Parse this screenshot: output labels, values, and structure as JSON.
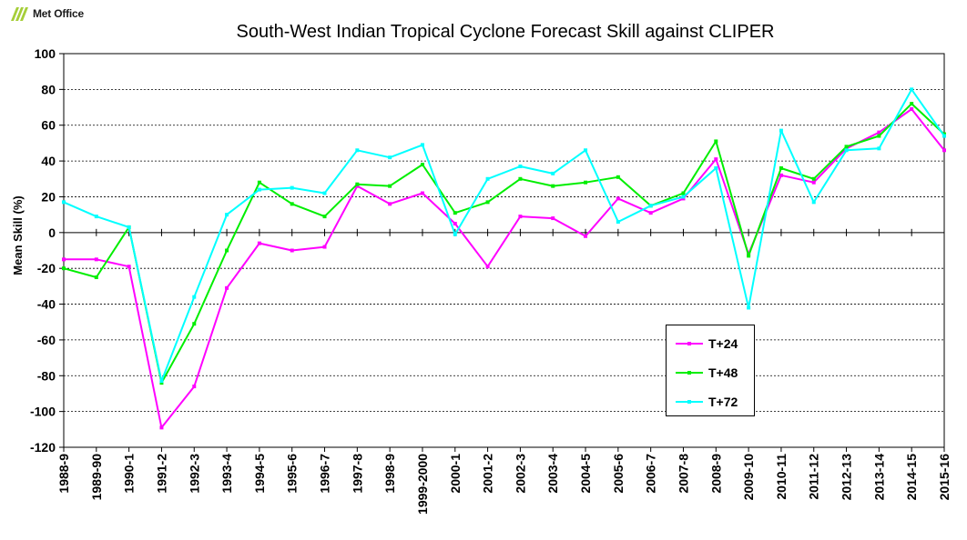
{
  "logo": {
    "text": "Met Office",
    "color": "#a6ce39"
  },
  "chart_data": {
    "type": "line",
    "title": "South-West Indian Tropical Cyclone Forecast Skill against CLIPER",
    "ylabel": "Mean Skill (%)",
    "xlabel": "",
    "ylim": [
      -120,
      100
    ],
    "yticks": [
      100,
      80,
      60,
      40,
      20,
      0,
      -20,
      -40,
      -60,
      -80,
      -100,
      -120
    ],
    "grid": "horizontal dashed",
    "legend_position": "lower-right",
    "categories": [
      "1988-9",
      "1989-90",
      "1990-1",
      "1991-2",
      "1992-3",
      "1993-4",
      "1994-5",
      "1995-6",
      "1996-7",
      "1997-8",
      "1998-9",
      "1999-2000",
      "2000-1",
      "2001-2",
      "2002-3",
      "2003-4",
      "2004-5",
      "2005-6",
      "2006-7",
      "2007-8",
      "2008-9",
      "2009-10",
      "2010-11",
      "2011-12",
      "2012-13",
      "2013-14",
      "2014-15",
      "2015-16"
    ],
    "series": [
      {
        "name": "T+24",
        "color": "#ff00ff",
        "values": [
          -15,
          -15,
          -19,
          -109,
          -86,
          -31,
          -6,
          -10,
          -8,
          26,
          16,
          22,
          5,
          -19,
          9,
          8,
          -2,
          19,
          11,
          19,
          41,
          -12,
          32,
          28,
          47,
          56,
          69,
          46
        ]
      },
      {
        "name": "T+48",
        "color": "#00ee00",
        "values": [
          -20,
          -25,
          3,
          -84,
          -51,
          -10,
          28,
          16,
          9,
          27,
          26,
          38,
          11,
          17,
          30,
          26,
          28,
          31,
          15,
          22,
          51,
          -13,
          36,
          30,
          48,
          54,
          72,
          55
        ]
      },
      {
        "name": "T+72",
        "color": "#00ffff",
        "values": [
          17,
          9,
          3,
          -83,
          -36,
          10,
          24,
          25,
          22,
          46,
          42,
          49,
          -1,
          30,
          37,
          33,
          46,
          6,
          15,
          20,
          36,
          -42,
          57,
          17,
          46,
          47,
          80,
          54
        ]
      }
    ]
  }
}
